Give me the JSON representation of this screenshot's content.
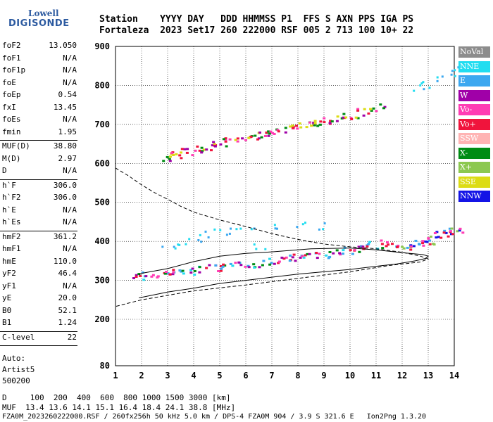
{
  "logo": {
    "line1": "Lowell",
    "line2": "DIGISONDE"
  },
  "header": {
    "row1": "Station    YYYY DAY   DDD HHMMSS P1  FFS S AXN PPS IGA PS",
    "row2": "Fortaleza  2023 Set17 260 222000 RSF 005 2 713 100 10+ 22"
  },
  "params": [
    {
      "name": "foF2",
      "value": "13.050"
    },
    {
      "name": "foF1",
      "value": "N/A"
    },
    {
      "name": "foF1p",
      "value": "N/A"
    },
    {
      "name": "foE",
      "value": "N/A"
    },
    {
      "name": "foEp",
      "value": "0.54"
    },
    {
      "name": "fxI",
      "value": "13.45"
    },
    {
      "name": "foEs",
      "value": "N/A"
    },
    {
      "name": "fmin",
      "value": "1.95"
    },
    {
      "name": "MUF(D)",
      "value": "38.80"
    },
    {
      "name": "M(D)",
      "value": "2.97"
    },
    {
      "name": "D",
      "value": "N/A"
    },
    {
      "name": "h`F",
      "value": "306.0"
    },
    {
      "name": "h`F2",
      "value": "306.0"
    },
    {
      "name": "h`E",
      "value": "N/A"
    },
    {
      "name": "h`Es",
      "value": "N/A"
    },
    {
      "name": "hmF2",
      "value": "361.2"
    },
    {
      "name": "hmF1",
      "value": "N/A"
    },
    {
      "name": "hmE",
      "value": "110.0"
    },
    {
      "name": "yF2",
      "value": "46.4"
    },
    {
      "name": "yF1",
      "value": "N/A"
    },
    {
      "name": "yE",
      "value": "20.0"
    },
    {
      "name": "B0",
      "value": "52.1"
    },
    {
      "name": "B1",
      "value": "1.24"
    },
    {
      "name": "C-level",
      "value": "22"
    }
  ],
  "auto": {
    "line1": "Auto:",
    "line2": "Artist5",
    "line3": "500200"
  },
  "footer": {
    "d_row": "D     100  200  400  600  800 1000 1500 3000 [km]",
    "muf_row": "MUF  13.4 13.6 14.1 15.1 16.4 18.4 24.1 38.8 [MHz]",
    "info_row": "FZA0M_2023260222000.RSF / 260fx256h 50 kHz 5.0 km / DPS-4 FZA0M 904 / 3.9 S 321.6 E   Ion2Png 1.3.20"
  },
  "legend": [
    {
      "label": "NoVal",
      "color": "#8c8c8c"
    },
    {
      "label": "NNE",
      "color": "#22ddf0"
    },
    {
      "label": "E",
      "color": "#3ca8f0"
    },
    {
      "label": "W",
      "color": "#a000a8"
    },
    {
      "label": "Vo-",
      "color": "#ff3cb4"
    },
    {
      "label": "Vo+",
      "color": "#f0143c"
    },
    {
      "label": "SSW",
      "color": "#ffb4b4"
    },
    {
      "label": "X-",
      "color": "#008c14"
    },
    {
      "label": "X+",
      "color": "#8cc850"
    },
    {
      "label": "SSE",
      "color": "#dcdc14"
    },
    {
      "label": "NNW",
      "color": "#1414e6"
    }
  ],
  "chart_data": {
    "type": "scatter",
    "x_ticks": [
      1,
      2,
      3,
      4,
      5,
      6,
      7,
      8,
      9,
      10,
      11,
      12,
      13,
      14
    ],
    "y_ticks": [
      80,
      200,
      300,
      400,
      500,
      600,
      700,
      800,
      900
    ],
    "xlim": [
      1,
      14
    ],
    "ylim": [
      80,
      900
    ],
    "series": [
      {
        "color_key": "F2 O-trace",
        "x": [
          1.9,
          2.3,
          2.8,
          3.2,
          3.7,
          4.2,
          4.8,
          5.3,
          5.8,
          6.3,
          6.9,
          7.4,
          7.9,
          8.4,
          8.9,
          9.4,
          9.9,
          10.4,
          10.9,
          11.3
        ],
        "y": [
          315,
          312,
          318,
          322,
          325,
          330,
          333,
          337,
          340,
          344,
          350,
          355,
          360,
          365,
          368,
          373,
          378,
          384,
          392,
          398
        ]
      },
      {
        "color_key": "F2 X-trace",
        "x": [
          12.0,
          12.3,
          12.6,
          12.9,
          13.2,
          13.5,
          13.8,
          14.0
        ],
        "y": [
          385,
          388,
          395,
          400,
          410,
          418,
          425,
          432
        ]
      },
      {
        "color_key": "Multiple hop",
        "x": [
          2.9,
          3.3,
          3.7,
          4.1,
          4.5,
          5.0,
          5.4,
          5.9,
          6.3,
          6.7,
          7.1,
          7.5,
          7.9,
          8.3,
          8.7,
          9.1,
          9.5,
          10.0,
          10.5,
          11.0
        ],
        "y": [
          615,
          625,
          632,
          638,
          645,
          652,
          660,
          665,
          672,
          678,
          684,
          690,
          695,
          700,
          706,
          712,
          718,
          725,
          733,
          745
        ]
      },
      {
        "color_key": "E echoes",
        "x": [
          3.0,
          3.5,
          4.0,
          4.5,
          5.0,
          5.5,
          6.0,
          6.5,
          7.0,
          8.0,
          9.0
        ],
        "y": [
          380,
          400,
          410,
          420,
          425,
          430,
          435,
          390,
          440,
          445,
          440
        ]
      },
      {
        "color_key": "E high",
        "x": [
          12.6,
          13.0,
          13.5,
          13.8,
          14.0
        ],
        "y": [
          795,
          805,
          820,
          835,
          850
        ]
      }
    ],
    "profile_solid": {
      "x": [
        1.9,
        3,
        4,
        5,
        6,
        7,
        8,
        9,
        10,
        11,
        11.8,
        12.5,
        12.9,
        13.0,
        12.8,
        12.0,
        11.0,
        10.0,
        8.5,
        7.0,
        6.0,
        5.0,
        4.0,
        3.0,
        2.0,
        1.9
      ],
      "y": [
        255,
        270,
        280,
        292,
        300,
        308,
        316,
        322,
        328,
        336,
        342,
        350,
        356,
        362,
        366,
        371,
        378,
        383,
        381,
        373,
        369,
        362,
        348,
        330,
        318,
        315
      ]
    },
    "profile_dashed": {
      "x": [
        1.0,
        1.5,
        2.0,
        2.5,
        3.0,
        3.5,
        4.0,
        5.0,
        6.0,
        7.0,
        8.0,
        9.0,
        10.0,
        11.0,
        12.0,
        12.7,
        13.0,
        12.7,
        11.5,
        10.0,
        8.0,
        6.0,
        4.0,
        2.0,
        1.0
      ],
      "y": [
        588,
        568,
        545,
        525,
        508,
        490,
        475,
        455,
        438,
        420,
        405,
        393,
        386,
        381,
        372,
        362,
        355,
        347,
        338,
        322,
        305,
        288,
        273,
        250,
        233
      ]
    }
  }
}
